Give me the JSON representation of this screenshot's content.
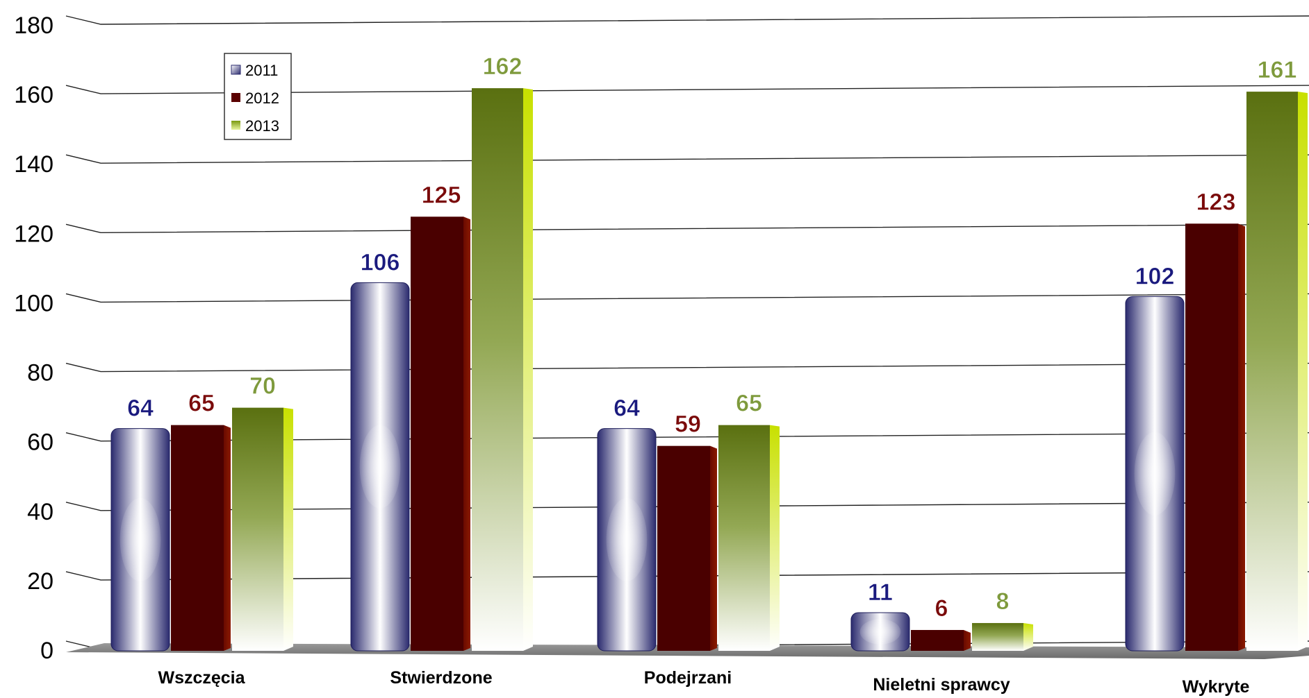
{
  "chart_data": {
    "type": "bar",
    "title": "",
    "xlabel": "",
    "ylabel": "",
    "ylim": [
      0,
      180
    ],
    "yticks": [
      0,
      20,
      40,
      60,
      80,
      100,
      120,
      140,
      160,
      180
    ],
    "grid": true,
    "legend_position": "top-left",
    "categories": [
      "Wszczęcia",
      "Stwierdzone",
      "Podejrzani",
      "Nieletni sprawcy",
      "Wykryte"
    ],
    "series": [
      {
        "name": "2011",
        "values": [
          64,
          106,
          64,
          11,
          102
        ],
        "color": "#1f1f7a",
        "label_color": "#1a1a7e"
      },
      {
        "name": "2012",
        "values": [
          65,
          125,
          59,
          6,
          123
        ],
        "color": "#5a0000",
        "label_color": "#7a0a0a"
      },
      {
        "name": "2013",
        "values": [
          70,
          162,
          65,
          8,
          161
        ],
        "color": "#5e7a10",
        "label_color": "#7e9a3c"
      }
    ]
  }
}
